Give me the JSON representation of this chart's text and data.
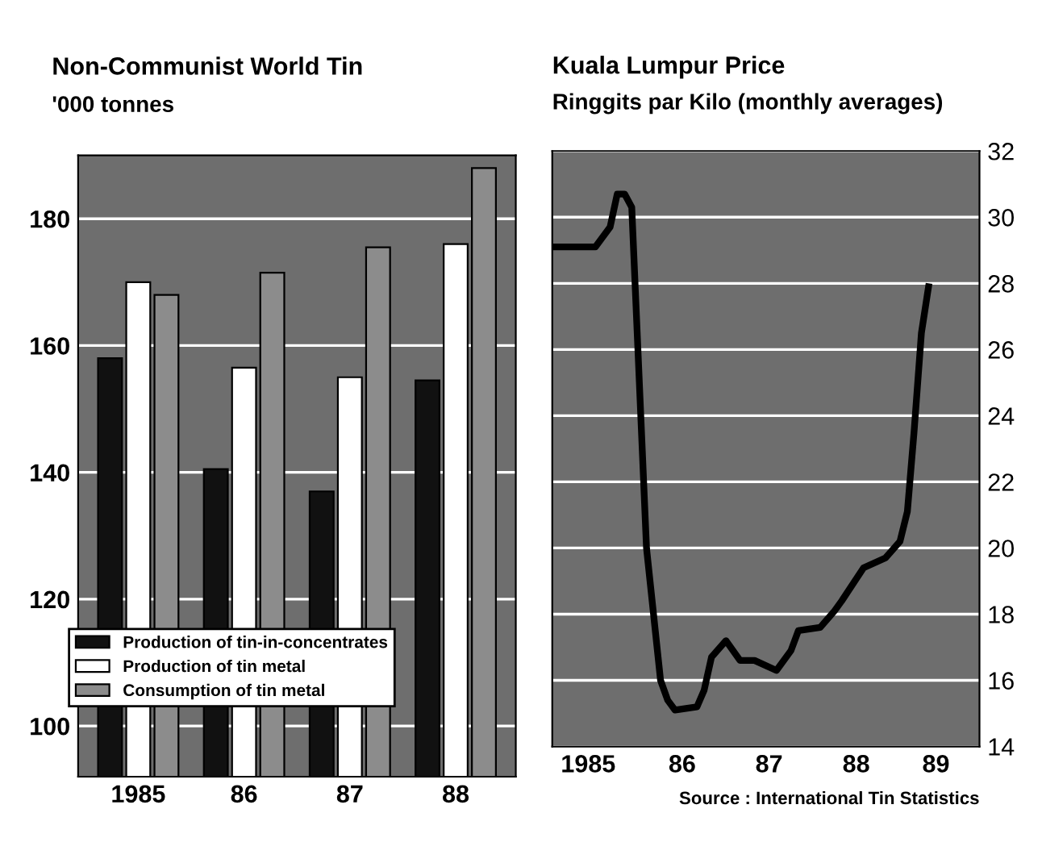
{
  "chart_data": [
    {
      "type": "bar",
      "title": "Non-Communist World Tin",
      "subtitle": "'000 tonnes",
      "categories": [
        "1985",
        "86",
        "87",
        "88"
      ],
      "series": [
        {
          "name": "Production of tin-in-concentrates",
          "color": "#111111",
          "values": [
            158,
            140.5,
            137,
            154.5
          ]
        },
        {
          "name": "Production of tin metal",
          "color": "#ffffff",
          "values": [
            170,
            156.5,
            155,
            176
          ]
        },
        {
          "name": "Consumption of tin metal",
          "color": "#8c8c8c",
          "values": [
            168,
            171.5,
            175.5,
            188
          ]
        }
      ],
      "ylim": [
        92,
        190
      ],
      "yticks": [
        100,
        120,
        140,
        160,
        180
      ],
      "grid": "y",
      "legend": "bottom left"
    },
    {
      "type": "line",
      "title": "Kuala Lumpur Price",
      "subtitle": "Ringgits par Kilo (monthly averages)",
      "x": [
        "1985-01",
        "1985-07",
        "1985-09",
        "1985-10",
        "1985-11",
        "1985-12",
        "1986-02",
        "1986-04",
        "1986-05",
        "1986-06",
        "1986-09",
        "1986-10",
        "1986-11",
        "1987-01",
        "1987-03",
        "1987-05",
        "1987-08",
        "1987-10",
        "1987-11",
        "1988-02",
        "1988-04",
        "1988-05",
        "1988-08",
        "1988-11",
        "1989-01",
        "1989-02",
        "1989-03",
        "1989-04",
        "1989-05"
      ],
      "series": [
        {
          "color": "#000000",
          "values": [
            29.1,
            29.1,
            29.7,
            30.7,
            30.7,
            30.3,
            20.0,
            16.0,
            15.4,
            15.1,
            15.2,
            15.7,
            16.7,
            17.2,
            16.6,
            16.6,
            16.3,
            16.9,
            17.5,
            17.6,
            18.1,
            18.4,
            19.4,
            19.7,
            20.2,
            21.1,
            23.5,
            26.5,
            27.9
          ]
        }
      ],
      "xlim": [
        "1985-01",
        "1989-12"
      ],
      "xticks": [
        {
          "value": "1985-06",
          "label": "1985"
        },
        {
          "value": "1986-07",
          "label": "86"
        },
        {
          "value": "1987-07",
          "label": "87"
        },
        {
          "value": "1988-07",
          "label": "88"
        },
        {
          "value": "1989-06",
          "label": "89"
        }
      ],
      "ylim": [
        14,
        32
      ],
      "yticks": [
        14,
        16,
        18,
        20,
        22,
        24,
        26,
        28,
        30,
        32
      ],
      "grid": "y",
      "annotations": [
        "Source : International Tin Statistics"
      ]
    }
  ]
}
